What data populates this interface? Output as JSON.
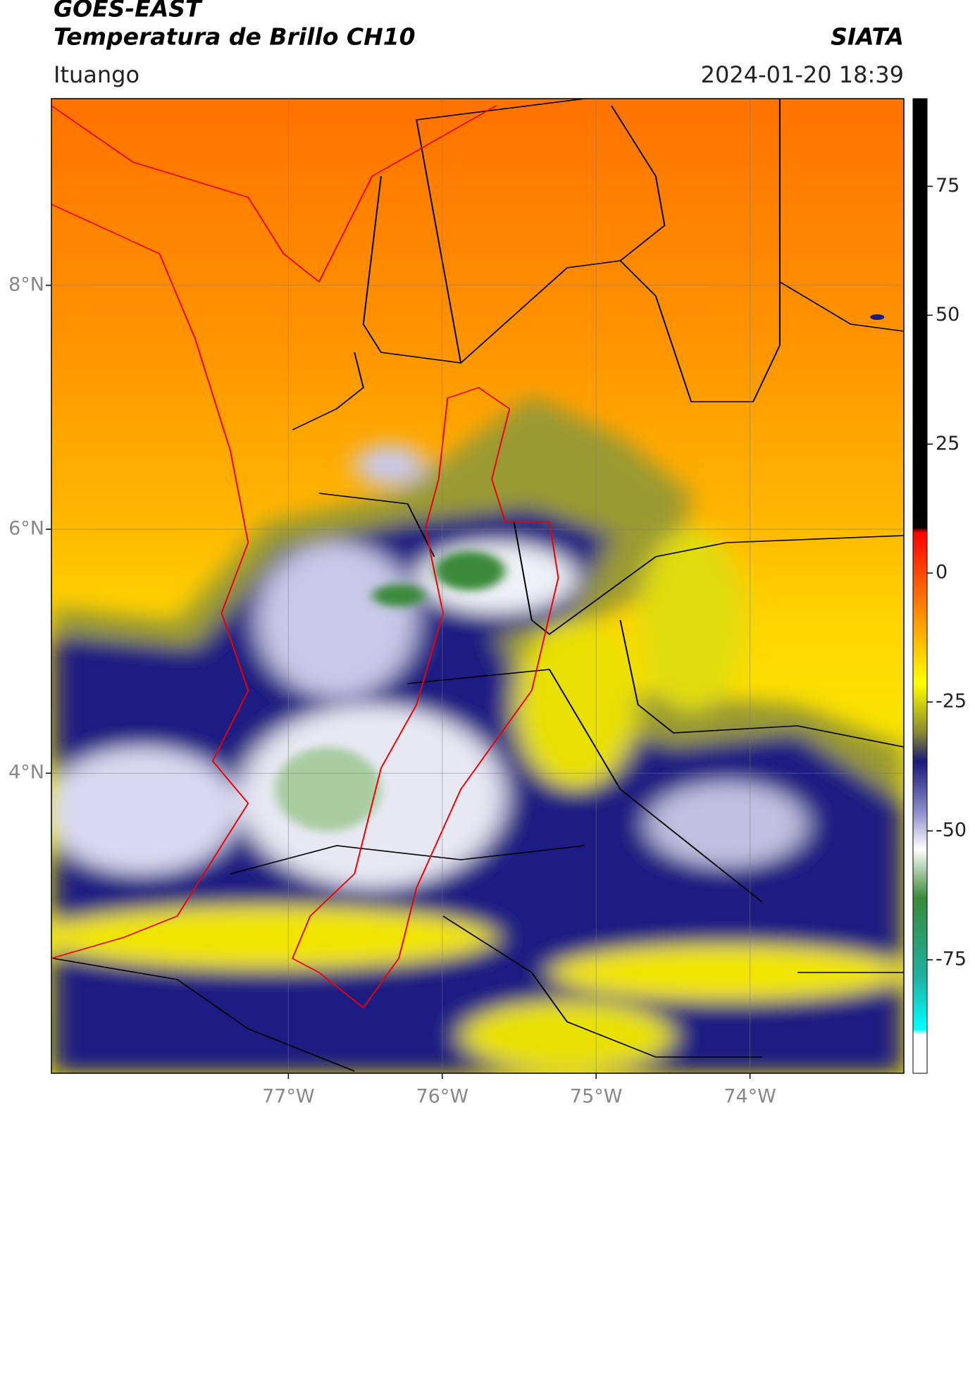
{
  "header": {
    "title_line1": "GOES-EAST",
    "title_line2": "Temperatura de Brillo CH10",
    "organization": "SIATA",
    "location": "Ituango",
    "timestamp": "2024-01-20 18:39"
  },
  "map": {
    "lat_range": [
      1.54,
      9.53
    ],
    "lon_range": [
      -78.54,
      -73.0
    ],
    "lat_ticks": [
      {
        "value": 8,
        "label": "8°N"
      },
      {
        "value": 6,
        "label": "6°N"
      },
      {
        "value": 4,
        "label": "4°N"
      }
    ],
    "lon_ticks": [
      {
        "value": -77,
        "label": "77°W"
      },
      {
        "value": -76,
        "label": "76°W"
      },
      {
        "value": -75,
        "label": "75°W"
      },
      {
        "value": -74,
        "label": "74°W"
      }
    ]
  },
  "colorbar": {
    "range": [
      -97,
      92
    ],
    "ticks": [
      75,
      50,
      25,
      0,
      -25,
      -50,
      -75
    ]
  }
}
